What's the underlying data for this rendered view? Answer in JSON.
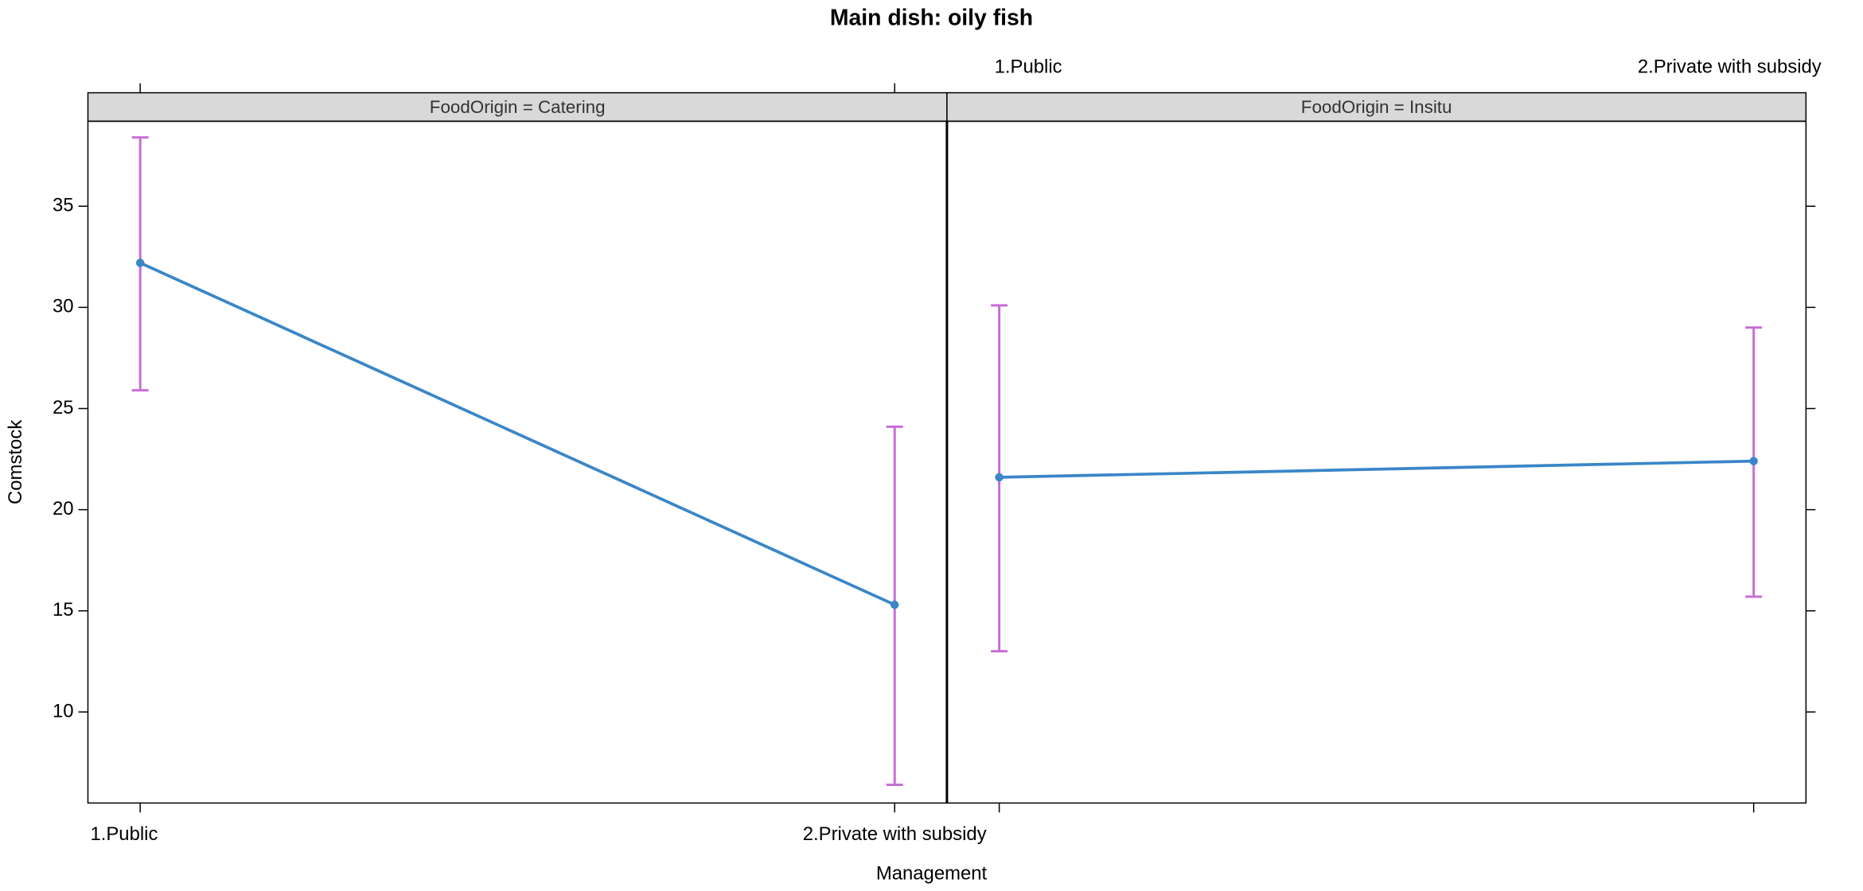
{
  "chart_data": {
    "type": "line",
    "title": "Main dish: oily fish",
    "x_label": "Management",
    "y_label": "Comstock",
    "categories": [
      "1.Public",
      "2.Private with subsidy"
    ],
    "ylim": [
      5.5,
      39.2
    ],
    "yticks": [
      10,
      15,
      20,
      25,
      30,
      35
    ],
    "line_color": "#3a86c8",
    "error_color": "#c86dd7",
    "series": [
      {
        "name": "FoodOrigin = Catering",
        "values": [
          32.2,
          15.3
        ],
        "lower": [
          25.9,
          6.4
        ],
        "upper": [
          38.4,
          24.1
        ]
      },
      {
        "name": "FoodOrigin = Insitu",
        "values": [
          21.6,
          22.4
        ],
        "lower": [
          13.0,
          15.7
        ],
        "upper": [
          30.1,
          29.0
        ]
      }
    ]
  }
}
